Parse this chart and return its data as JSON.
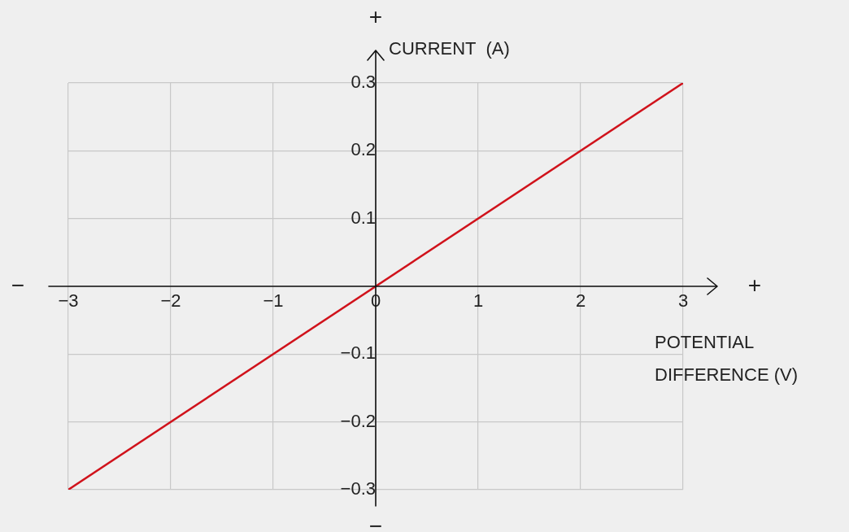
{
  "chart_data": {
    "type": "line",
    "xlabel": "POTENTIAL DIFFERENCE (V)",
    "ylabel": "CURRENT  (A)",
    "x": [
      -3,
      3
    ],
    "series": [
      {
        "color": "#d0121b",
        "values": [
          -0.3,
          0.3
        ]
      }
    ],
    "xlim": [
      -3,
      3
    ],
    "xticks": [
      {
        "value": -3,
        "label": "−3"
      },
      {
        "value": -2,
        "label": "−2"
      },
      {
        "value": -1,
        "label": "−1"
      },
      0,
      1,
      2,
      3
    ],
    "ylim": [
      -0.3,
      0.3
    ],
    "yticks": [
      {
        "value": -0.3,
        "label": "−0.3"
      },
      {
        "value": -0.2,
        "label": "−0.2"
      },
      {
        "value": -0.1,
        "label": "−0.1"
      },
      {
        "value": 0,
        "label": null
      },
      0.1,
      0.2,
      0.3
    ],
    "grid": true,
    "annotations": [
      "+",
      "−",
      "−",
      "+"
    ]
  }
}
